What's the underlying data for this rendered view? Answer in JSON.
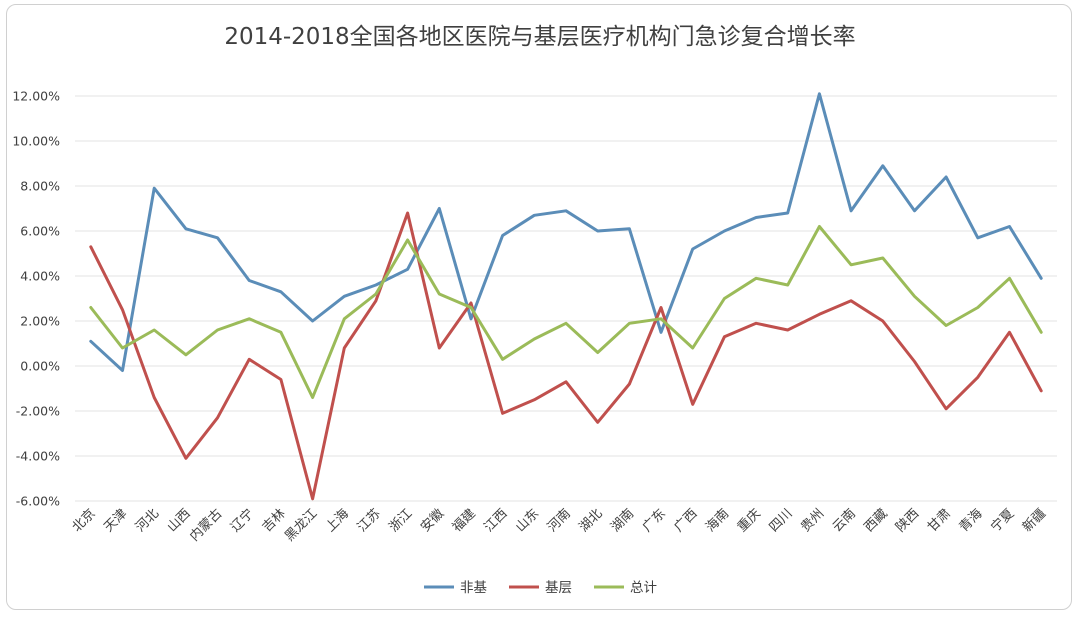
{
  "chart_data": {
    "type": "line",
    "title": "2014-2018全国各地区医院与基层医疗机构门急诊复合增长率",
    "xlabel": "",
    "ylabel": "",
    "ylim": [
      -0.06,
      0.12
    ],
    "yticks": [
      0.12,
      0.1,
      0.08,
      0.06,
      0.04,
      0.02,
      0.0,
      -0.02,
      -0.04,
      -0.06
    ],
    "ytick_labels": [
      "12.00%",
      "10.00%",
      "8.00%",
      "6.00%",
      "4.00%",
      "2.00%",
      "0.00%",
      "-2.00%",
      "-4.00%",
      "-6.00%"
    ],
    "grid": true,
    "legend_position": "bottom",
    "categories": [
      "北京",
      "天津",
      "河北",
      "山西",
      "内蒙古",
      "辽宁",
      "吉林",
      "黑龙江",
      "上海",
      "江苏",
      "浙江",
      "安徽",
      "福建",
      "江西",
      "山东",
      "河南",
      "湖北",
      "湖南",
      "广东",
      "广西",
      "海南",
      "重庆",
      "四川",
      "贵州",
      "云南",
      "西藏",
      "陕西",
      "甘肃",
      "青海",
      "宁夏",
      "新疆"
    ],
    "series": [
      {
        "name": "非基",
        "color": "#5b8db8",
        "values": [
          0.011,
          -0.002,
          0.079,
          0.061,
          0.057,
          0.038,
          0.033,
          0.02,
          0.031,
          0.036,
          0.043,
          0.07,
          0.021,
          0.058,
          0.067,
          0.069,
          0.06,
          0.061,
          0.015,
          0.052,
          0.06,
          0.066,
          0.068,
          0.121,
          0.069,
          0.089,
          0.069,
          0.084,
          0.057,
          0.062,
          0.039
        ]
      },
      {
        "name": "基层",
        "color": "#c0504d",
        "values": [
          0.053,
          0.025,
          -0.014,
          -0.041,
          -0.023,
          0.003,
          -0.006,
          -0.059,
          0.008,
          0.029,
          0.068,
          0.008,
          0.028,
          -0.021,
          -0.015,
          -0.007,
          -0.025,
          -0.008,
          0.026,
          -0.017,
          0.013,
          0.019,
          0.016,
          0.023,
          0.029,
          0.02,
          0.002,
          -0.019,
          -0.005,
          0.015,
          -0.011
        ]
      },
      {
        "name": "总计",
        "color": "#9bbb59",
        "values": [
          0.026,
          0.008,
          0.016,
          0.005,
          0.016,
          0.021,
          0.015,
          -0.014,
          0.021,
          0.032,
          0.056,
          0.032,
          0.026,
          0.003,
          0.012,
          0.019,
          0.006,
          0.019,
          0.021,
          0.008,
          0.03,
          0.039,
          0.036,
          0.062,
          0.045,
          0.048,
          0.031,
          0.018,
          0.026,
          0.039,
          0.015
        ]
      }
    ]
  }
}
